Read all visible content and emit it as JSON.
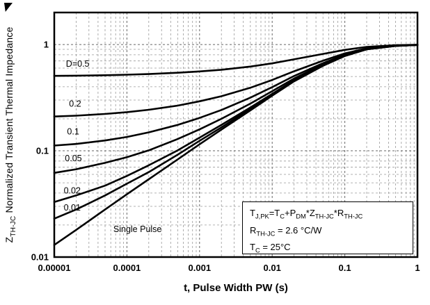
{
  "figure": {
    "x_axis_label": "t, Pulse Width PW (s)",
    "y_axis_label": "Z~TH-JC~ Normalized Transient Thermal Impedance"
  },
  "annotation": {
    "lines": [
      "T~J,PK~=T~C~+P~DM~*Z~TH-JC~*R~TH-JC~",
      "R~TH-JC~ = 2.6 °C/W",
      "T~C~ = 25°C"
    ]
  },
  "chart_data": {
    "type": "line",
    "title": "",
    "xlabel": "t, Pulse Width PW (s)",
    "ylabel": "ZTH-JC Normalized Transient Thermal Impedance",
    "x_scale": "log",
    "y_scale": "log",
    "xlim": [
      1e-05,
      1
    ],
    "ylim": [
      0.01,
      2
    ],
    "grid": true,
    "line_color": "#000000",
    "x_ticks": [
      "0.00001",
      "0.0001",
      "0.001",
      "0.01",
      "0.1",
      "1"
    ],
    "y_ticks": [
      "0.01",
      "0.1",
      "1"
    ],
    "x": [
      1e-05,
      2e-05,
      5e-05,
      0.0001,
      0.0002,
      0.0005,
      0.001,
      0.002,
      0.005,
      0.01,
      0.02,
      0.05,
      0.1,
      0.2,
      0.5,
      1
    ],
    "series": [
      {
        "name": "D=0.5",
        "label": "D=0.5",
        "label_at": [
          1.45e-05,
          0.62
        ],
        "values": [
          0.507,
          0.509,
          0.514,
          0.52,
          0.527,
          0.542,
          0.558,
          0.579,
          0.62,
          0.665,
          0.725,
          0.815,
          0.89,
          0.95,
          0.985,
          0.995
        ]
      },
      {
        "name": "D=0.2",
        "label": "0.2",
        "label_at": [
          1.6e-05,
          0.26
        ],
        "values": [
          0.21,
          0.214,
          0.222,
          0.231,
          0.243,
          0.266,
          0.292,
          0.326,
          0.392,
          0.464,
          0.56,
          0.704,
          0.824,
          0.92,
          0.976,
          0.992
        ]
      },
      {
        "name": "D=0.1",
        "label": "0.1",
        "label_at": [
          1.5e-05,
          0.142
        ],
        "values": [
          0.112,
          0.116,
          0.125,
          0.135,
          0.149,
          0.175,
          0.204,
          0.242,
          0.316,
          0.397,
          0.505,
          0.667,
          0.802,
          0.91,
          0.973,
          0.991
        ]
      },
      {
        "name": "D=0.05",
        "label": "0.05",
        "label_at": [
          1.4e-05,
          0.08
        ],
        "values": [
          0.062,
          0.067,
          0.077,
          0.087,
          0.101,
          0.129,
          0.159,
          0.2,
          0.278,
          0.364,
          0.478,
          0.649,
          0.791,
          0.905,
          0.972,
          0.991
        ]
      },
      {
        "name": "D=0.02",
        "label": "0.02",
        "label_at": [
          1.35e-05,
          0.0395
        ],
        "values": [
          0.033,
          0.038,
          0.047,
          0.058,
          0.073,
          0.101,
          0.133,
          0.175,
          0.255,
          0.343,
          0.461,
          0.637,
          0.784,
          0.902,
          0.971,
          0.99
        ]
      },
      {
        "name": "D=0.01",
        "label": "0.01",
        "label_at": [
          1.35e-05,
          0.0275
        ],
        "values": [
          0.023,
          0.028,
          0.038,
          0.049,
          0.063,
          0.092,
          0.124,
          0.166,
          0.248,
          0.337,
          0.456,
          0.634,
          0.782,
          0.901,
          0.97,
          0.99
        ]
      },
      {
        "name": "Single Pulse",
        "label": "Single Pulse",
        "label_at": [
          6.5e-05,
          0.0172
        ],
        "values": [
          0.013,
          0.018,
          0.028,
          0.039,
          0.054,
          0.083,
          0.115,
          0.158,
          0.24,
          0.33,
          0.45,
          0.63,
          0.78,
          0.9,
          0.97,
          0.99
        ]
      }
    ]
  }
}
